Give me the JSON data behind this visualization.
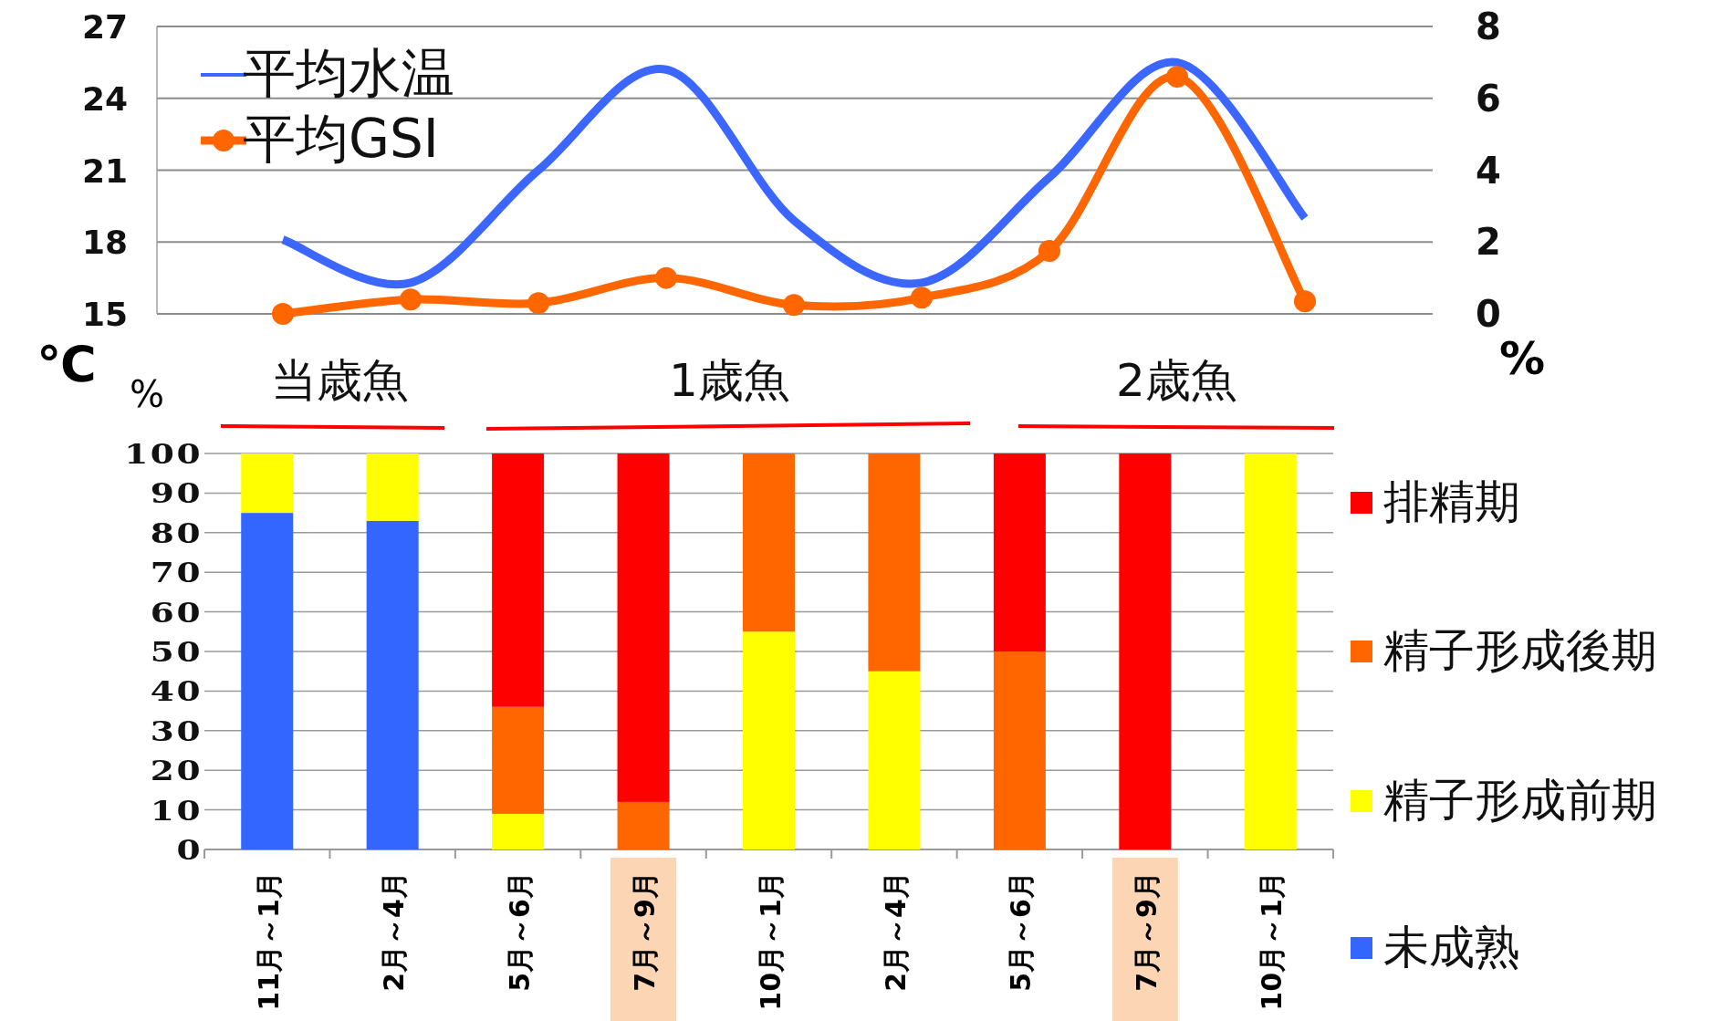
{
  "chart_data": [
    {
      "type": "line",
      "categories": [
        null,
        null,
        null,
        null,
        null,
        null,
        null,
        null,
        null
      ],
      "ylabel": "℃",
      "y2label": "%",
      "ylim": [
        15,
        27
      ],
      "yticks": [
        15,
        18,
        21,
        24,
        27
      ],
      "y2lim": [
        0,
        8
      ],
      "y2ticks": [
        0,
        2,
        4,
        6,
        8
      ],
      "grid": "y",
      "legend": "top left",
      "line_style": "solid",
      "series": [
        {
          "name": "平均水温",
          "color": "#3b66ff",
          "marker": "none",
          "values": [
            18.1,
            16.3,
            21.0,
            25.2,
            18.9,
            16.3,
            20.7,
            25.5,
            19.0
          ]
        },
        {
          "name": "平均GSI",
          "color": "#ff6600",
          "axis": "y2",
          "marker": "circle",
          "values": [
            0.0,
            0.4,
            0.3,
            1.0,
            0.25,
            0.45,
            1.75,
            6.6,
            0.35
          ]
        }
      ]
    },
    {
      "type": "bar",
      "stacked": true,
      "categories": [
        "11月～1月",
        "2月～4月",
        "5月～6月",
        "7月～9月",
        "10月～1月",
        "2月～4月",
        "5月～6月",
        "7月～9月",
        "10月～1月"
      ],
      "ylabel": "%",
      "ylim": [
        0,
        100
      ],
      "yticks": [
        0,
        10,
        20,
        30,
        40,
        50,
        60,
        70,
        80,
        90,
        100
      ],
      "grid": "y",
      "legend": "right",
      "annotations": [
        "当歳魚",
        "1歳魚",
        "2歳魚"
      ],
      "series": [
        {
          "name": "未成熟",
          "color": "#3366ff",
          "values": [
            85,
            83,
            0,
            0,
            0,
            0,
            0,
            0,
            0
          ]
        },
        {
          "name": "精子形成前期",
          "color": "#ffff00",
          "values": [
            15,
            17,
            9,
            0,
            55,
            45,
            0,
            0,
            100
          ]
        },
        {
          "name": "精子形成後期",
          "color": "#ff6600",
          "values": [
            0,
            0,
            27,
            12,
            45,
            55,
            50,
            0,
            0
          ]
        },
        {
          "name": "排精期",
          "color": "#ff0000",
          "values": [
            0,
            0,
            64,
            88,
            0,
            0,
            50,
            100,
            0
          ]
        }
      ]
    }
  ]
}
